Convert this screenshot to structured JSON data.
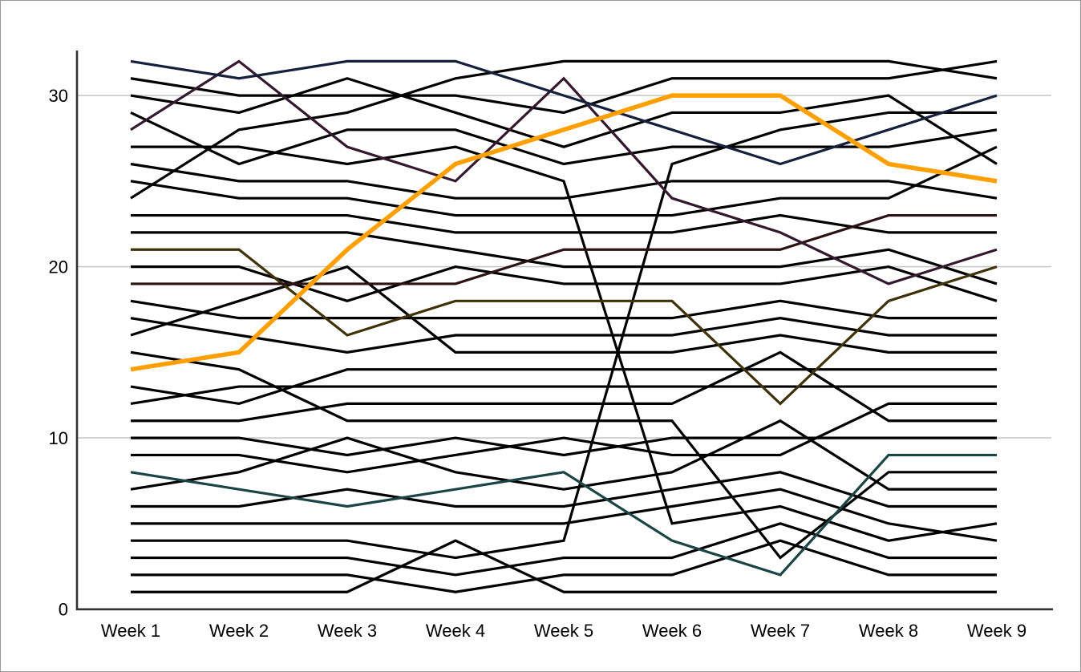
{
  "chart_data": {
    "type": "line",
    "subtype": "bump-chart",
    "title": "",
    "xlabel": "",
    "ylabel": "",
    "categories": [
      "Week 1",
      "Week 2",
      "Week 3",
      "Week 4",
      "Week 5",
      "Week 6",
      "Week 7",
      "Week 8",
      "Week 9"
    ],
    "y_ticks": [
      0,
      10,
      20,
      30
    ],
    "ylim": [
      0,
      33
    ],
    "grid": "horizontal",
    "legend": "none",
    "colors": {
      "highlight_orange": "#FFA000",
      "navy": "#16203C",
      "dark_purple": "#33182E",
      "dark_maroon": "#2A1312",
      "dark_olive": "#3F3208",
      "dark_teal": "#1C4444",
      "black": "#000000",
      "gridline": "#C9C9C9",
      "axis": "#333333"
    },
    "series": [
      {
        "name": "series-black-01",
        "color": "#000000",
        "width": 3.2,
        "highlight": false,
        "values": [
          24,
          28,
          29,
          31,
          32,
          32,
          32,
          32,
          31
        ]
      },
      {
        "name": "series-black-02",
        "color": "#000000",
        "width": 3.2,
        "highlight": false,
        "values": [
          31,
          30,
          30,
          30,
          29,
          31,
          31,
          31,
          32
        ]
      },
      {
        "name": "series-black-03",
        "color": "#000000",
        "width": 3.2,
        "highlight": false,
        "values": [
          30,
          29,
          31,
          29,
          27,
          29,
          29,
          30,
          26
        ]
      },
      {
        "name": "series-black-04",
        "color": "#000000",
        "width": 3.2,
        "highlight": false,
        "values": [
          29,
          26,
          28,
          28,
          26,
          27,
          27,
          27,
          28
        ]
      },
      {
        "name": "series-black-05",
        "color": "#000000",
        "width": 3.2,
        "highlight": false,
        "values": [
          27,
          27,
          26,
          27,
          25,
          5,
          6,
          4,
          5
        ]
      },
      {
        "name": "series-black-06",
        "color": "#000000",
        "width": 3.2,
        "highlight": false,
        "values": [
          26,
          25,
          25,
          24,
          24,
          25,
          25,
          25,
          24
        ]
      },
      {
        "name": "series-black-07",
        "color": "#000000",
        "width": 3.2,
        "highlight": false,
        "values": [
          25,
          24,
          24,
          23,
          23,
          23,
          24,
          24,
          27
        ]
      },
      {
        "name": "series-black-08",
        "color": "#000000",
        "width": 3.2,
        "highlight": false,
        "values": [
          23,
          23,
          23,
          22,
          22,
          22,
          23,
          22,
          22
        ]
      },
      {
        "name": "series-black-09",
        "color": "#000000",
        "width": 3.2,
        "highlight": false,
        "values": [
          22,
          22,
          22,
          21,
          20,
          20,
          20,
          21,
          19
        ]
      },
      {
        "name": "series-black-10",
        "color": "#000000",
        "width": 3.2,
        "highlight": false,
        "values": [
          20,
          20,
          18,
          20,
          19,
          19,
          19,
          20,
          18
        ]
      },
      {
        "name": "series-black-11",
        "color": "#000000",
        "width": 3.2,
        "highlight": false,
        "values": [
          18,
          17,
          17,
          17,
          17,
          17,
          18,
          17,
          17
        ]
      },
      {
        "name": "series-black-12",
        "color": "#000000",
        "width": 3.2,
        "highlight": false,
        "values": [
          17,
          16,
          15,
          16,
          16,
          16,
          17,
          16,
          16
        ]
      },
      {
        "name": "series-black-13",
        "color": "#000000",
        "width": 3.2,
        "highlight": false,
        "values": [
          16,
          18,
          20,
          15,
          15,
          15,
          16,
          15,
          15
        ]
      },
      {
        "name": "series-black-14",
        "color": "#000000",
        "width": 3.2,
        "highlight": false,
        "values": [
          10,
          10,
          9,
          10,
          9,
          10,
          10,
          10,
          10
        ]
      },
      {
        "name": "series-black-15",
        "color": "#000000",
        "width": 3.2,
        "highlight": false,
        "values": [
          9,
          9,
          8,
          9,
          10,
          9,
          9,
          12,
          12
        ]
      },
      {
        "name": "series-black-16",
        "color": "#000000",
        "width": 3.2,
        "highlight": false,
        "values": [
          12,
          13,
          13,
          13,
          13,
          13,
          13,
          13,
          13
        ]
      },
      {
        "name": "series-black-17",
        "color": "#000000",
        "width": 3.2,
        "highlight": false,
        "values": [
          13,
          12,
          14,
          14,
          14,
          14,
          14,
          14,
          14
        ]
      },
      {
        "name": "series-black-18",
        "color": "#000000",
        "width": 3.2,
        "highlight": false,
        "values": [
          11,
          11,
          12,
          12,
          12,
          12,
          15,
          11,
          11
        ]
      },
      {
        "name": "series-black-19",
        "color": "#000000",
        "width": 3.2,
        "highlight": false,
        "values": [
          15,
          14,
          11,
          11,
          11,
          11,
          3,
          8,
          8
        ]
      },
      {
        "name": "series-black-20",
        "color": "#000000",
        "width": 3.2,
        "highlight": false,
        "values": [
          7,
          8,
          10,
          8,
          7,
          8,
          11,
          7,
          7
        ]
      },
      {
        "name": "series-black-21",
        "color": "#000000",
        "width": 3.2,
        "highlight": false,
        "values": [
          6,
          6,
          7,
          6,
          6,
          7,
          8,
          6,
          6
        ]
      },
      {
        "name": "series-black-22",
        "color": "#000000",
        "width": 3.2,
        "highlight": false,
        "values": [
          5,
          5,
          5,
          5,
          5,
          6,
          7,
          5,
          4
        ]
      },
      {
        "name": "series-black-23",
        "color": "#000000",
        "width": 3.2,
        "highlight": false,
        "values": [
          4,
          4,
          4,
          3,
          4,
          26,
          28,
          29,
          29
        ]
      },
      {
        "name": "series-black-24",
        "color": "#000000",
        "width": 3.2,
        "highlight": false,
        "values": [
          3,
          3,
          3,
          2,
          3,
          3,
          5,
          3,
          3
        ]
      },
      {
        "name": "series-black-25",
        "color": "#000000",
        "width": 3.2,
        "highlight": false,
        "values": [
          2,
          2,
          2,
          1,
          2,
          2,
          4,
          2,
          2
        ]
      },
      {
        "name": "series-black-26",
        "color": "#000000",
        "width": 3.2,
        "highlight": false,
        "values": [
          1,
          1,
          1,
          4,
          1,
          1,
          1,
          1,
          1
        ]
      },
      {
        "name": "series-teal",
        "color": "#1C4444",
        "width": 3.2,
        "highlight": false,
        "values": [
          8,
          7,
          6,
          7,
          8,
          4,
          2,
          9,
          9
        ]
      },
      {
        "name": "series-olive",
        "color": "#3F3208",
        "width": 3.2,
        "highlight": false,
        "values": [
          21,
          21,
          16,
          18,
          18,
          18,
          12,
          18,
          20
        ]
      },
      {
        "name": "series-maroon",
        "color": "#2A1312",
        "width": 3.2,
        "highlight": false,
        "values": [
          19,
          19,
          19,
          19,
          21,
          21,
          21,
          23,
          23
        ]
      },
      {
        "name": "series-purple",
        "color": "#33182E",
        "width": 3.2,
        "highlight": false,
        "values": [
          28,
          32,
          27,
          25,
          31,
          24,
          22,
          19,
          21
        ]
      },
      {
        "name": "series-navy",
        "color": "#16203C",
        "width": 3.2,
        "highlight": false,
        "values": [
          32,
          31,
          32,
          32,
          30,
          28,
          26,
          28,
          30
        ]
      },
      {
        "name": "series-highlight-orange",
        "color": "#FFA000",
        "width": 5.5,
        "highlight": true,
        "values": [
          14,
          15,
          21,
          26,
          28,
          30,
          30,
          26,
          25
        ]
      }
    ]
  }
}
